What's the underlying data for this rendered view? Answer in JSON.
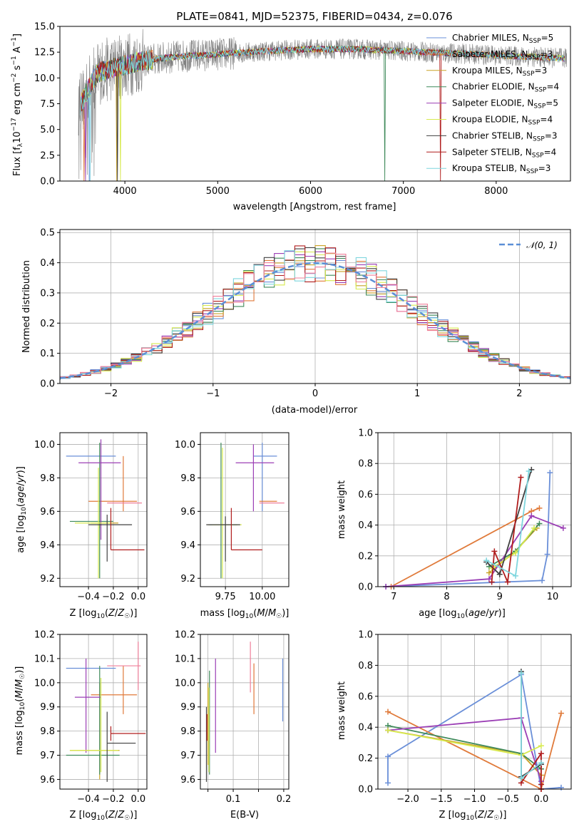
{
  "figure_title": "PLATE=0841, MJD=52375, FIBERID=0434, z=0.076",
  "colors": {
    "Chrabrier_MILES": "#6a8fd8",
    "Salpeter_MILES": "#e07a3a",
    "Kroupa_MILES": "#c9a227",
    "Chabrier_ELODIE": "#3f8a5a",
    "Salpeter_ELODIE": "#9b3fb5",
    "Kroupa_ELODIE": "#d7ea4f",
    "Chabrier_STELIB": "#404040",
    "Salpeter_STELIB": "#b01d1d",
    "Kroupa_STELIB": "#7fd6de",
    "data": "#808080",
    "normal": "#5b8fd6"
  },
  "chart_data": [
    {
      "id": "spectrum",
      "type": "line",
      "title": "PLATE=0841, MJD=52375, FIBERID=0434, z=0.076",
      "xlabel": "wavelength [Angstrom, rest frame]",
      "ylabel": "Flux [f_λ 10^-17 erg cm^-2 s^-1 A^-1]",
      "xlim": [
        3300,
        8800
      ],
      "ylim": [
        0,
        15
      ],
      "xticks": [
        4000,
        5000,
        6000,
        7000,
        8000
      ],
      "yticks": [
        0.0,
        2.5,
        5.0,
        7.5,
        10.0,
        12.5,
        15.0
      ],
      "legend_position": "right",
      "spectrum_envelope": {
        "wavelength": [
          3500,
          3700,
          3900,
          4100,
          4300,
          4600,
          5000,
          5500,
          6000,
          6500,
          7000,
          7500,
          8000,
          8500,
          8750
        ],
        "flux": [
          7.0,
          10.5,
          11.0,
          11.5,
          11.8,
          12.1,
          12.3,
          12.6,
          12.8,
          12.8,
          12.6,
          12.4,
          12.2,
          12.0,
          11.9
        ]
      },
      "series": [
        {
          "name": "Chabrier MILES",
          "nssp": "5",
          "color": "#6a8fd8"
        },
        {
          "name": "Salpeter MILES",
          "nssp": "3",
          "color": "#e07a3a"
        },
        {
          "name": "Kroupa MILES",
          "nssp": "3",
          "color": "#c9a227"
        },
        {
          "name": "Chabrier ELODIE",
          "nssp": "4",
          "color": "#3f8a5a"
        },
        {
          "name": "Salpeter ELODIE",
          "nssp": "5",
          "color": "#9b3fb5"
        },
        {
          "name": "Kroupa ELODIE",
          "nssp": "4",
          "color": "#d7ea4f"
        },
        {
          "name": "Chabrier STELIB",
          "nssp": "3",
          "color": "#404040"
        },
        {
          "name": "Salpeter STELIB",
          "nssp": "4",
          "color": "#b01d1d"
        },
        {
          "name": "Kroupa STELIB",
          "nssp": "3",
          "color": "#7fd6de"
        }
      ]
    },
    {
      "id": "residuals",
      "type": "area",
      "xlabel": "(data-model)/error",
      "ylabel": "Normed distribution",
      "xlim": [
        -2.5,
        2.5
      ],
      "ylim": [
        0,
        0.51
      ],
      "xticks": [
        -2,
        -1,
        0,
        1,
        2
      ],
      "yticks": [
        0.0,
        0.1,
        0.2,
        0.3,
        0.4,
        0.5
      ],
      "legend_position": "top-right",
      "legend_label": "𝒩(0, 1)",
      "bin_width": 0.1,
      "reference_curve": "standard normal"
    },
    {
      "id": "age_vs_Z",
      "type": "scatter",
      "xlabel": "Z [log10(Z/Z☉)]",
      "ylabel": "age  [log10(age/yr)]",
      "xlim": [
        -0.63,
        0.07
      ],
      "ylim": [
        9.15,
        10.07
      ],
      "xticks": [
        -0.4,
        -0.2,
        0.0
      ],
      "xtick_labels": [
        "−0.4",
        "−0.2",
        "0.0"
      ],
      "yticks": [
        9.2,
        9.4,
        9.6,
        9.8,
        10.0
      ],
      "points": [
        {
          "x": -0.38,
          "y": 9.93,
          "xmin": -0.58,
          "xmax": -0.18,
          "ymin": 9.93,
          "ymax": 9.93,
          "color": "#6a8fd8"
        },
        {
          "x": -0.12,
          "y": 9.66,
          "xmin": -0.4,
          "xmax": -0.01,
          "ymin": 9.6,
          "ymax": 9.93,
          "color": "#e07a3a"
        },
        {
          "x": -0.31,
          "y": 9.53,
          "xmin": -0.38,
          "xmax": -0.16,
          "ymin": 9.5,
          "ymax": 9.53,
          "color": "#c9a227"
        },
        {
          "x": -0.31,
          "y": 9.54,
          "xmin": -0.55,
          "xmax": -0.2,
          "ymin": 9.2,
          "ymax": 10.01,
          "color": "#3f8a5a"
        },
        {
          "x": -0.3,
          "y": 9.89,
          "xmin": -0.48,
          "xmax": -0.14,
          "ymin": 9.43,
          "ymax": 10.03,
          "color": "#9b3fb5"
        },
        {
          "x": -0.32,
          "y": 9.53,
          "xmin": -0.51,
          "xmax": -0.21,
          "ymin": 9.2,
          "ymax": 9.86,
          "color": "#d7ea4f"
        },
        {
          "x": -0.25,
          "y": 9.52,
          "xmin": -0.4,
          "xmax": -0.05,
          "ymin": 9.3,
          "ymax": 9.58,
          "color": "#404040"
        },
        {
          "x": -0.22,
          "y": 9.37,
          "xmin": -0.22,
          "xmax": 0.05,
          "ymin": 9.37,
          "ymax": 9.62,
          "color": "#b01d1d"
        },
        {
          "x": 0.0,
          "y": 9.65,
          "xmin": -0.25,
          "xmax": 0.03,
          "ymin": 9.65,
          "ymax": 9.65,
          "color": "#ef7f9a"
        }
      ]
    },
    {
      "id": "age_vs_mass",
      "type": "scatter",
      "xlabel": "mass [log10(M/M☉)]",
      "ylabel": "",
      "xlim": [
        9.58,
        10.18
      ],
      "ylim": [
        9.15,
        10.07
      ],
      "xticks": [
        9.75,
        10.0
      ],
      "xtick_labels": [
        "9.75",
        "10.00"
      ],
      "yticks": [
        9.2,
        9.4,
        9.6,
        9.8,
        10.0
      ],
      "points": [
        {
          "x": 10.0,
          "y": 9.93,
          "xmin": 9.94,
          "xmax": 10.1,
          "ymin": 9.6,
          "ymax": 10.01,
          "color": "#6a8fd8"
        },
        {
          "x": 10.04,
          "y": 9.66,
          "xmin": 9.98,
          "xmax": 10.1,
          "ymin": 9.66,
          "ymax": 9.66,
          "color": "#e07a3a"
        },
        {
          "x": 9.73,
          "y": 9.52,
          "xmin": 9.63,
          "xmax": 9.83,
          "ymin": 9.52,
          "ymax": 9.52,
          "color": "#c9a227"
        },
        {
          "x": 9.72,
          "y": 9.52,
          "xmin": 9.64,
          "xmax": 9.83,
          "ymin": 9.2,
          "ymax": 10.01,
          "color": "#3f8a5a"
        },
        {
          "x": 9.94,
          "y": 9.89,
          "xmin": 9.82,
          "xmax": 10.08,
          "ymin": 9.6,
          "ymax": 10.0,
          "color": "#9b3fb5"
        },
        {
          "x": 9.73,
          "y": 9.52,
          "xmin": 9.66,
          "xmax": 9.86,
          "ymin": 9.2,
          "ymax": 9.98,
          "color": "#d7ea4f"
        },
        {
          "x": 9.75,
          "y": 9.52,
          "xmin": 9.62,
          "xmax": 9.85,
          "ymin": 9.3,
          "ymax": 9.57,
          "color": "#404040"
        },
        {
          "x": 9.79,
          "y": 9.37,
          "xmin": 9.79,
          "xmax": 10.0,
          "ymin": 9.37,
          "ymax": 9.62,
          "color": "#b01d1d"
        },
        {
          "x": 10.08,
          "y": 9.65,
          "xmin": 9.98,
          "xmax": 10.15,
          "ymin": 9.65,
          "ymax": 9.65,
          "color": "#ef7f9a"
        }
      ]
    },
    {
      "id": "weight_vs_age",
      "type": "line",
      "xlabel": "age  [log10(age/yr)]",
      "ylabel": "mass weight",
      "xlim": [
        6.7,
        10.35
      ],
      "ylim": [
        0,
        1
      ],
      "xticks": [
        7,
        8,
        9,
        10
      ],
      "yticks": [
        0.0,
        0.2,
        0.4,
        0.6,
        0.8,
        1.0
      ],
      "series": [
        {
          "color": "#6a8fd8",
          "x": [
            6.85,
            9.8,
            9.9,
            9.95
          ],
          "y": [
            0.0,
            0.04,
            0.21,
            0.74
          ]
        },
        {
          "color": "#e07a3a",
          "x": [
            6.95,
            9.6,
            9.75
          ],
          "y": [
            0.0,
            0.49,
            0.51
          ]
        },
        {
          "color": "#c9a227",
          "x": [
            8.8,
            9.3,
            9.7
          ],
          "y": [
            0.09,
            0.23,
            0.38
          ]
        },
        {
          "color": "#3f8a5a",
          "x": [
            8.8,
            9.3,
            9.75
          ],
          "y": [
            0.13,
            0.23,
            0.41
          ]
        },
        {
          "color": "#9b3fb5",
          "x": [
            6.85,
            8.8,
            9.6,
            10.2
          ],
          "y": [
            0.0,
            0.05,
            0.46,
            0.38
          ]
        },
        {
          "color": "#d7ea4f",
          "x": [
            8.85,
            9.3,
            9.65
          ],
          "y": [
            0.12,
            0.22,
            0.38
          ]
        },
        {
          "color": "#404040",
          "x": [
            8.75,
            9.0,
            9.6
          ],
          "y": [
            0.16,
            0.08,
            0.76
          ]
        },
        {
          "color": "#b01d1d",
          "x": [
            8.85,
            8.9,
            9.15,
            9.4
          ],
          "y": [
            0.03,
            0.23,
            0.03,
            0.71
          ]
        },
        {
          "color": "#7fd6de",
          "x": [
            8.75,
            9.3,
            9.55
          ],
          "y": [
            0.17,
            0.07,
            0.75
          ]
        }
      ]
    },
    {
      "id": "mass_vs_Z",
      "type": "scatter",
      "xlabel": "Z [log10(Z/Z☉)]",
      "ylabel": "mass [log10(M/M☉)]",
      "xlim": [
        -0.63,
        0.07
      ],
      "ylim": [
        9.56,
        10.2
      ],
      "xticks": [
        -0.4,
        -0.2,
        0.0
      ],
      "xtick_labels": [
        "−0.4",
        "−0.2",
        "0.0"
      ],
      "yticks": [
        9.6,
        9.7,
        9.8,
        9.9,
        10.0,
        10.1,
        10.2
      ],
      "points": [
        {
          "x": -0.4,
          "y": 10.06,
          "xmin": -0.58,
          "xmax": -0.18,
          "ymin": 10.06,
          "ymax": 10.06,
          "color": "#6a8fd8"
        },
        {
          "x": -0.12,
          "y": 9.95,
          "xmin": -0.38,
          "xmax": -0.01,
          "ymin": 9.87,
          "ymax": 10.07,
          "color": "#e07a3a"
        },
        {
          "x": -0.31,
          "y": 9.72,
          "xmin": -0.55,
          "xmax": -0.15,
          "ymin": 9.6,
          "ymax": 10.0,
          "color": "#c9a227"
        },
        {
          "x": -0.31,
          "y": 9.7,
          "xmin": -0.58,
          "xmax": -0.15,
          "ymin": 9.62,
          "ymax": 10.07,
          "color": "#3f8a5a"
        },
        {
          "x": -0.42,
          "y": 9.94,
          "xmin": -0.51,
          "xmax": -0.3,
          "ymin": 9.71,
          "ymax": 10.1,
          "color": "#9b3fb5"
        },
        {
          "x": -0.3,
          "y": 9.72,
          "xmin": -0.55,
          "xmax": -0.16,
          "ymin": 9.63,
          "ymax": 10.02,
          "color": "#d7ea4f"
        },
        {
          "x": -0.25,
          "y": 9.75,
          "xmin": -0.25,
          "xmax": -0.02,
          "ymin": 9.59,
          "ymax": 9.88,
          "color": "#404040"
        },
        {
          "x": -0.22,
          "y": 9.79,
          "xmin": -0.22,
          "xmax": 0.06,
          "ymin": 9.76,
          "ymax": 9.82,
          "color": "#b01d1d"
        },
        {
          "x": 0.0,
          "y": 10.07,
          "xmin": -0.25,
          "xmax": 0.02,
          "ymin": 9.97,
          "ymax": 10.17,
          "color": "#ef7f9a"
        }
      ]
    },
    {
      "id": "mass_vs_EBV",
      "type": "scatter",
      "xlabel": "E(B-V)",
      "ylabel": "",
      "xlim": [
        0.035,
        0.21
      ],
      "ylim": [
        9.56,
        10.2
      ],
      "xticks": [
        0.05,
        0.1,
        0.15,
        0.2
      ],
      "xtick_labels": [
        "",
        "0.1",
        "",
        "0.2"
      ],
      "yticks": [
        9.6,
        9.7,
        9.8,
        9.9,
        10.0,
        10.1,
        10.2
      ],
      "points": [
        {
          "x": 0.198,
          "ymin": 9.84,
          "ymax": 10.1,
          "color": "#6a8fd8"
        },
        {
          "x": 0.141,
          "ymin": 9.87,
          "ymax": 10.08,
          "color": "#e07a3a"
        },
        {
          "x": 0.05,
          "ymin": 9.66,
          "ymax": 10.0,
          "color": "#c9a227"
        },
        {
          "x": 0.053,
          "ymin": 9.62,
          "ymax": 10.05,
          "color": "#3f8a5a"
        },
        {
          "x": 0.065,
          "ymin": 9.71,
          "ymax": 10.1,
          "color": "#9b3fb5"
        },
        {
          "x": 0.052,
          "ymin": 9.63,
          "ymax": 9.98,
          "color": "#d7ea4f"
        },
        {
          "x": 0.047,
          "ymin": 9.59,
          "ymax": 9.9,
          "color": "#404040"
        },
        {
          "x": 0.048,
          "ymin": 9.76,
          "ymax": 9.87,
          "color": "#b01d1d"
        },
        {
          "x": 0.134,
          "ymin": 9.96,
          "ymax": 10.17,
          "color": "#ef7f9a"
        }
      ]
    },
    {
      "id": "weight_vs_Z",
      "type": "line",
      "xlabel": "Z [log10(Z/Z☉)]",
      "ylabel": "mass weight",
      "xlim": [
        -2.45,
        0.45
      ],
      "ylim": [
        0,
        1
      ],
      "xticks": [
        -2.0,
        -1.5,
        -1.0,
        -0.5,
        0.0
      ],
      "xtick_labels": [
        "−2.0",
        "−1.5",
        "−1.0",
        "−0.5",
        "0.0"
      ],
      "yticks": [
        0.0,
        0.2,
        0.4,
        0.6,
        0.8,
        1.0
      ],
      "series": [
        {
          "color": "#6a8fd8",
          "x": [
            -2.3,
            -2.3,
            -0.3,
            0.0,
            0.3
          ],
          "y": [
            0.04,
            0.21,
            0.74,
            0.0,
            0.01
          ]
        },
        {
          "color": "#e07a3a",
          "x": [
            -2.3,
            0.0,
            0.3
          ],
          "y": [
            0.5,
            0.0,
            0.49
          ]
        },
        {
          "color": "#c9a227",
          "x": [
            -2.3,
            -0.3,
            0.0
          ],
          "y": [
            0.38,
            0.23,
            0.09
          ]
        },
        {
          "color": "#3f8a5a",
          "x": [
            -2.3,
            -0.3,
            0.0
          ],
          "y": [
            0.41,
            0.23,
            0.13
          ]
        },
        {
          "color": "#9b3fb5",
          "x": [
            -2.3,
            -0.3,
            0.0
          ],
          "y": [
            0.38,
            0.46,
            0.05
          ]
        },
        {
          "color": "#d7ea4f",
          "x": [
            -2.3,
            -0.3,
            0.0
          ],
          "y": [
            0.38,
            0.22,
            0.28
          ]
        },
        {
          "color": "#404040",
          "x": [
            -0.3,
            -0.3,
            0.0
          ],
          "y": [
            0.76,
            0.08,
            0.16
          ]
        },
        {
          "color": "#b01d1d",
          "x": [
            -0.3,
            0.0,
            0.0,
            0.0
          ],
          "y": [
            0.04,
            0.23,
            0.03,
            0.0
          ]
        },
        {
          "color": "#7fd6de",
          "x": [
            -0.3,
            -0.3,
            0.0
          ],
          "y": [
            0.75,
            0.07,
            0.17
          ]
        }
      ]
    }
  ]
}
